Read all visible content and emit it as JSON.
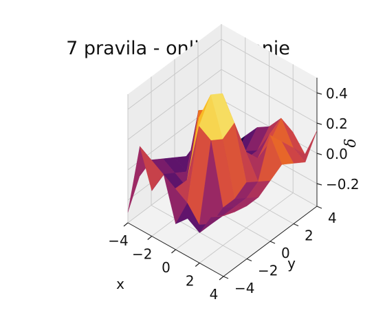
{
  "chart_data": {
    "type": "surface3d",
    "title": "7 pravila - online učenje",
    "xlabel": "x",
    "ylabel": "y",
    "zlabel": "δ",
    "xlim": [
      -4,
      4
    ],
    "ylim": [
      -4,
      4
    ],
    "zlim": [
      -0.35,
      0.5
    ],
    "x_ticks": [
      -4,
      -2,
      0,
      2,
      4
    ],
    "y_ticks": [
      -4,
      -2,
      0,
      2,
      4
    ],
    "z_ticks": [
      -0.2,
      0.0,
      0.2,
      0.4
    ],
    "x_tick_labels": [
      "−4",
      "−2",
      "0",
      "2",
      "4"
    ],
    "y_tick_labels": [
      "−4",
      "−2",
      "0",
      "2",
      "4"
    ],
    "z_tick_labels": [
      "−0.2",
      "0.0",
      "0.2",
      "0.4"
    ],
    "colormap": "inferno",
    "grid": true,
    "x": [
      -4,
      -3,
      -2,
      -1,
      0,
      1,
      2,
      3,
      4
    ],
    "y": [
      -4,
      -3,
      -2,
      -1,
      0,
      1,
      2,
      3,
      4
    ],
    "z": [
      [
        -0.28,
        0.2,
        -0.05,
        0.1,
        -0.18,
        -0.1,
        -0.15,
        0.0,
        0.05
      ],
      [
        -0.1,
        0.05,
        0.0,
        -0.05,
        -0.1,
        -0.2,
        -0.15,
        -0.05,
        0.02
      ],
      [
        -0.05,
        -0.1,
        -0.15,
        -0.05,
        0.35,
        0.3,
        -0.1,
        -0.05,
        0.0
      ],
      [
        -0.1,
        -0.15,
        -0.2,
        0.3,
        0.5,
        0.25,
        -0.1,
        -0.05,
        0.0
      ],
      [
        -0.15,
        -0.2,
        0.25,
        0.3,
        0.45,
        0.3,
        -0.05,
        0.0,
        0.05
      ],
      [
        -0.2,
        -0.05,
        0.1,
        0.0,
        0.2,
        0.05,
        -0.1,
        0.25,
        0.1
      ],
      [
        -0.25,
        -0.2,
        -0.3,
        -0.25,
        -0.1,
        -0.05,
        0.1,
        0.15,
        0.05
      ],
      [
        -0.3,
        -0.35,
        -0.25,
        -0.15,
        -0.1,
        0.05,
        0.2,
        0.05,
        0.0
      ],
      [
        -0.2,
        -0.25,
        -0.15,
        -0.05,
        0.0,
        0.1,
        0.05,
        -0.05,
        0.15
      ]
    ]
  }
}
